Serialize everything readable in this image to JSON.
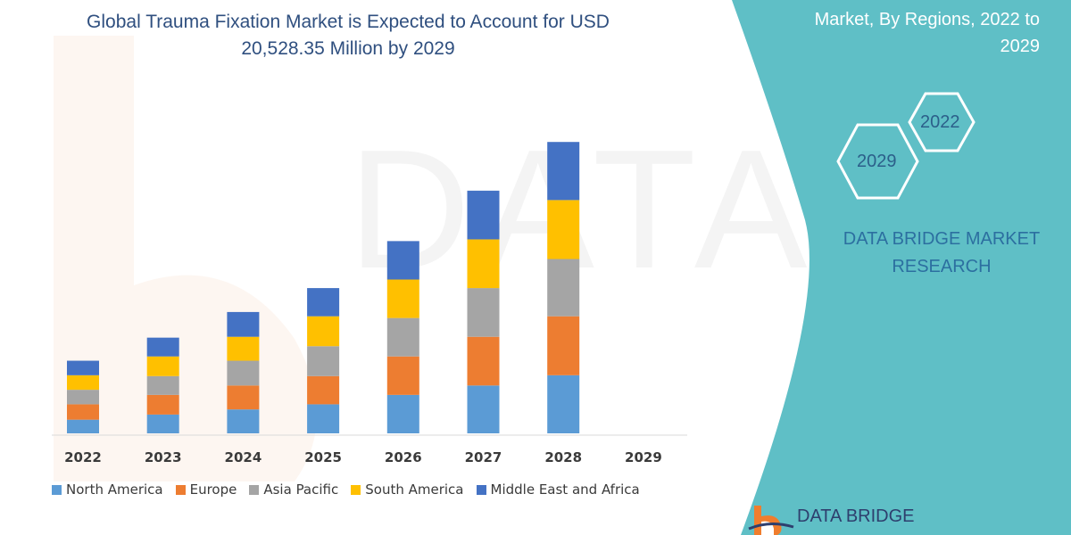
{
  "title_line1": "Global Trauma Fixation Market is Expected to Account for USD",
  "title_line2": "20,528.35 Million by 2029",
  "side_panel": {
    "header_line1": "Market, By Regions, 2022 to",
    "header_line2": "2029",
    "hex_top": "2022",
    "hex_bottom": "2029",
    "brand_line1": "DATA BRIDGE MARKET",
    "brand_line2": "RESEARCH",
    "panel_color": "#5fbfc6"
  },
  "logo": {
    "text": "DATA BRIDGE",
    "icon": "data-bridge-logo-icon"
  },
  "watermark": "DATA BRIDGE",
  "chart_data": {
    "type": "bar",
    "stacked": true,
    "categories": [
      "2022",
      "2023",
      "2024",
      "2025",
      "2026",
      "2027",
      "2028",
      "2029"
    ],
    "series": [
      {
        "name": "North America",
        "color": "#5b9bd5",
        "values": [
          16,
          22,
          28,
          34,
          45,
          56,
          68,
          0
        ]
      },
      {
        "name": "Europe",
        "color": "#ed7d31",
        "values": [
          18,
          23,
          28,
          33,
          45,
          57,
          69,
          0
        ]
      },
      {
        "name": "Asia Pacific",
        "color": "#a5a5a5",
        "values": [
          17,
          22,
          29,
          35,
          45,
          57,
          67,
          0
        ]
      },
      {
        "name": "South America",
        "color": "#ffc000",
        "values": [
          17,
          23,
          28,
          35,
          45,
          57,
          69,
          0
        ]
      },
      {
        "name": "Middle East and Africa",
        "color": "#4472c4",
        "values": [
          17,
          22,
          29,
          33,
          45,
          57,
          68,
          0
        ]
      }
    ],
    "title": "Global Trauma Fixation Market is Expected to Account for USD 20,528.35 Million by 2029",
    "xlabel": "",
    "ylabel": "",
    "ylim": [
      0,
      360
    ],
    "grid": false,
    "legend_position": "bottom"
  }
}
